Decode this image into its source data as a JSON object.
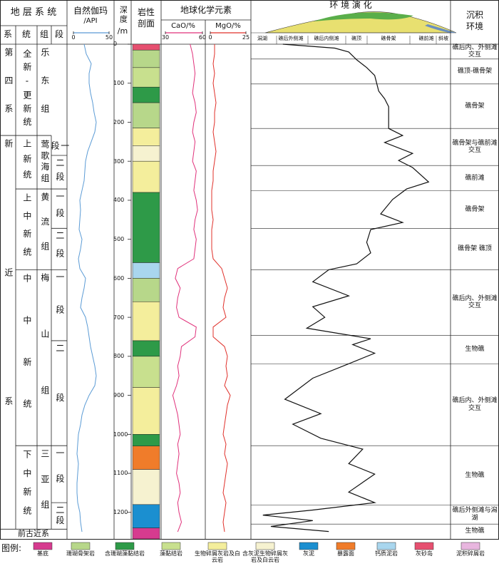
{
  "strata": {
    "title": "地 层 系 统",
    "columns": [
      "系",
      "统",
      "组",
      "段"
    ],
    "systems": [
      {
        "name": "第四系",
        "top": 0,
        "bottom": 234
      },
      {
        "name": "新近系",
        "top": 234,
        "bottom": 1243
      }
    ],
    "series": [
      {
        "name": "全新-更新统",
        "top": 0,
        "bottom": 234
      },
      {
        "name": "上新统",
        "top": 234,
        "bottom": 371
      },
      {
        "name": "上中新统",
        "top": 371,
        "bottom": 578
      },
      {
        "name": "中中新统",
        "top": 578,
        "bottom": 1029
      },
      {
        "name": "下中新统",
        "top": 1029,
        "bottom": 1243
      }
    ],
    "formations": [
      {
        "name": "乐东组",
        "top": 0,
        "bottom": 234
      },
      {
        "name": "莺歌海组",
        "top": 234,
        "bottom": 371
      },
      {
        "name": "黄流组",
        "top": 371,
        "bottom": 578
      },
      {
        "name": "梅山组",
        "top": 578,
        "bottom": 1029
      },
      {
        "name": "三亚组",
        "top": 1029,
        "bottom": 1243
      }
    ],
    "members": [
      {
        "name": "一段",
        "top": 234,
        "bottom": 285
      },
      {
        "name": "二段",
        "top": 285,
        "bottom": 371
      },
      {
        "name": "一段",
        "top": 371,
        "bottom": 472
      },
      {
        "name": "二段",
        "top": 472,
        "bottom": 578
      },
      {
        "name": "一段",
        "top": 578,
        "bottom": 760
      },
      {
        "name": "二段",
        "top": 760,
        "bottom": 1029
      },
      {
        "name": "一段",
        "top": 1029,
        "bottom": 1175
      },
      {
        "name": "二段",
        "top": 1175,
        "bottom": 1243
      }
    ],
    "pre": {
      "name": "前古近系",
      "top": 1243,
      "bottom": 1268
    }
  },
  "depth": {
    "title": "深度",
    "unit": "/m",
    "lim": [
      0,
      1268
    ],
    "ticks": [
      0,
      100,
      200,
      300,
      400,
      500,
      600,
      700,
      800,
      900,
      1000,
      1100,
      1200
    ]
  },
  "logs": {
    "depth": [
      0,
      25,
      50,
      75,
      100,
      125,
      150,
      175,
      200,
      225,
      250,
      275,
      300,
      325,
      350,
      375,
      400,
      425,
      450,
      475,
      500,
      525,
      550,
      575,
      600,
      625,
      650,
      675,
      700,
      725,
      750,
      775,
      800,
      825,
      850,
      875,
      900,
      925,
      950,
      975,
      1000,
      1025,
      1050,
      1075,
      1100,
      1125,
      1150,
      1175,
      1200,
      1225,
      1250
    ],
    "gamma": {
      "title": "自然伽玛",
      "unit": "/API",
      "xlim": [
        0,
        50
      ],
      "xticks": [
        0,
        50
      ],
      "color": "#5b9bd5",
      "values": [
        15,
        18,
        25,
        22,
        22,
        24,
        27,
        29,
        32,
        30,
        25,
        20,
        17,
        16,
        15,
        12,
        9,
        10,
        9,
        8,
        12,
        10,
        7,
        9,
        17,
        15,
        12,
        10,
        17,
        20,
        22,
        24,
        27,
        30,
        32,
        30,
        22,
        16,
        12,
        10,
        7,
        6,
        5,
        7,
        6,
        5,
        5,
        6,
        9,
        10,
        12
      ]
    },
    "geochem_title": "地球化学元素",
    "cao": {
      "label": "CaO/%",
      "xlim": [
        30,
        60
      ],
      "xticks": [
        30,
        60
      ],
      "color": "#e0307a",
      "values": [
        50,
        52,
        53,
        54,
        53,
        52,
        54,
        55,
        53,
        52,
        54,
        53,
        52,
        55,
        54,
        53,
        55,
        56,
        54,
        53,
        55,
        54,
        53,
        40,
        38,
        42,
        40,
        39,
        41,
        55,
        54,
        43,
        42,
        40,
        41,
        39,
        36,
        38,
        40,
        41,
        42,
        40,
        41,
        40,
        39,
        41,
        42,
        40,
        41,
        43,
        40
      ]
    },
    "mgo": {
      "label": "MgO/%",
      "xlim": [
        0,
        25
      ],
      "xticks": [
        0,
        25
      ],
      "color": "#e0302a",
      "values": [
        3,
        3,
        2,
        3,
        2,
        3,
        4,
        3,
        3,
        2,
        3,
        4,
        3,
        2,
        2,
        1,
        1,
        1,
        2,
        1,
        1,
        1,
        2,
        8,
        10,
        12,
        10,
        9,
        11,
        2,
        2,
        10,
        12,
        11,
        12,
        10,
        14,
        12,
        11,
        10,
        9,
        11,
        10,
        12,
        11,
        10,
        9,
        11,
        10,
        9,
        10
      ]
    }
  },
  "lithology": {
    "title": [
      "岩性",
      "剖面"
    ],
    "layers": [
      {
        "top": 0,
        "bottom": 15,
        "type": 9
      },
      {
        "top": 15,
        "bottom": 60,
        "type": 1
      },
      {
        "top": 60,
        "bottom": 110,
        "type": 3
      },
      {
        "top": 110,
        "bottom": 150,
        "type": 2
      },
      {
        "top": 150,
        "bottom": 215,
        "type": 1
      },
      {
        "top": 215,
        "bottom": 260,
        "type": 4
      },
      {
        "top": 260,
        "bottom": 300,
        "type": 5
      },
      {
        "top": 300,
        "bottom": 380,
        "type": 4
      },
      {
        "top": 380,
        "bottom": 560,
        "type": 2
      },
      {
        "top": 560,
        "bottom": 600,
        "type": 8
      },
      {
        "top": 600,
        "bottom": 660,
        "type": 1
      },
      {
        "top": 660,
        "bottom": 760,
        "type": 4
      },
      {
        "top": 760,
        "bottom": 800,
        "type": 2
      },
      {
        "top": 800,
        "bottom": 880,
        "type": 3
      },
      {
        "top": 880,
        "bottom": 1000,
        "type": 4
      },
      {
        "top": 1000,
        "bottom": 1030,
        "type": 2
      },
      {
        "top": 1030,
        "bottom": 1090,
        "type": 7
      },
      {
        "top": 1090,
        "bottom": 1180,
        "type": 5
      },
      {
        "top": 1180,
        "bottom": 1240,
        "type": 6
      },
      {
        "top": 1240,
        "bottom": 1268,
        "type": 0
      }
    ]
  },
  "environment": {
    "title": "环 境 演 化",
    "zones": [
      "潟湖",
      "礁后外侧滩",
      "礁后内侧滩",
      "礁顶",
      "礁骨架",
      "礁前滩",
      "斜坡"
    ],
    "curve": {
      "xlim": [
        0,
        100
      ],
      "depth": [
        0,
        10,
        20,
        40,
        60,
        80,
        100,
        120,
        140,
        160,
        216,
        234,
        252,
        280,
        298,
        316,
        353,
        371,
        398,
        435,
        457,
        475,
        508,
        535,
        563,
        578,
        609,
        645,
        673,
        700,
        728,
        755,
        770,
        792,
        819,
        856,
        910,
        947,
        974,
        1010,
        1038,
        1075,
        1102,
        1148,
        1175,
        1194,
        1207,
        1221,
        1236,
        1249
      ],
      "values": [
        16,
        42,
        49,
        53,
        58,
        62,
        63,
        64,
        67,
        69,
        69,
        76,
        67,
        81,
        74,
        81,
        89,
        78,
        71,
        65,
        76,
        60,
        58,
        60,
        53,
        39,
        31,
        49,
        31,
        37,
        28,
        60,
        51,
        62,
        49,
        31,
        17,
        35,
        21,
        35,
        56,
        49,
        62,
        49,
        62,
        31,
        6,
        31,
        10,
        39
      ]
    },
    "facies_title": [
      "沉积",
      "环境"
    ],
    "facies": [
      {
        "label": "礁后内、外侧滩交互",
        "top": 0,
        "bottom": 38
      },
      {
        "label": "礁顶-礁骨架",
        "top": 38,
        "bottom": 102
      },
      {
        "label": "礁骨架",
        "top": 102,
        "bottom": 216
      },
      {
        "label": "礁骨架与礁前滩交互",
        "top": 216,
        "bottom": 311
      },
      {
        "label": "礁前滩",
        "top": 311,
        "bottom": 375
      },
      {
        "label": "礁骨架",
        "top": 375,
        "bottom": 472
      },
      {
        "label": "礁骨架 礁顶",
        "top": 472,
        "bottom": 578
      },
      {
        "label": "礁后内、外侧滩交互",
        "top": 578,
        "bottom": 746
      },
      {
        "label": "生物礁",
        "top": 746,
        "bottom": 819
      },
      {
        "label": "礁后内、外侧滩交互",
        "top": 819,
        "bottom": 1029
      },
      {
        "label": "生物礁",
        "top": 1029,
        "bottom": 1181
      },
      {
        "label": "礁后外侧滩与潟湖",
        "top": 1181,
        "bottom": 1230
      },
      {
        "label": "生物礁",
        "top": 1230,
        "bottom": 1268
      }
    ]
  },
  "legend": {
    "title": "图例:",
    "items": [
      {
        "label": "基底",
        "color": "#d63b8f"
      },
      {
        "label": "珊瑚骨架岩",
        "color": "#b7d78a"
      },
      {
        "label": "含珊瑚藻黏结岩",
        "color": "#2e9a48"
      },
      {
        "label": "藻黏结岩",
        "color": "#c8e08e"
      },
      {
        "label": "生物碎屑灰岩及白云岩",
        "color": "#f4ee9c"
      },
      {
        "label": "含灰泥生物碎屑灰岩及白云岩",
        "color": "#f6f2d0"
      },
      {
        "label": "灰泥",
        "color": "#1b8fd0"
      },
      {
        "label": "暴露面",
        "color": "#f07c2a"
      },
      {
        "label": "钙质泥岩",
        "color": "#a9d6ee"
      },
      {
        "label": "灰砂岛",
        "color": "#e65070"
      },
      {
        "label": "泥积碎屑岩",
        "color": "#e8b6df"
      }
    ]
  }
}
